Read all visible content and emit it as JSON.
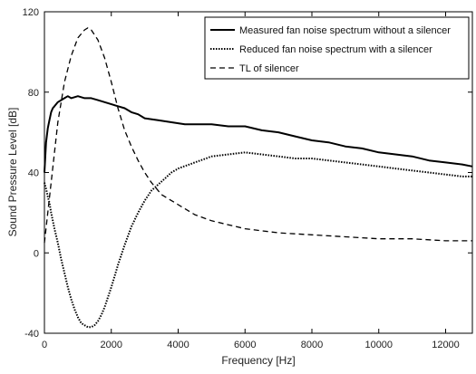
{
  "chart_data": {
    "type": "line",
    "xlabel": "Frequency [Hz]",
    "ylabel": "Sound Pressure Level [dB]",
    "xlim": [
      0,
      12800
    ],
    "ylim": [
      -40,
      120
    ],
    "xticks": [
      0,
      2000,
      4000,
      6000,
      8000,
      10000,
      12000
    ],
    "yticks": [
      -40,
      0,
      40,
      80,
      120
    ],
    "grid": false,
    "legend_position": "top-right",
    "series": [
      {
        "name": "Measured fan noise spectrum without a silencer",
        "style": "solid",
        "x": [
          0,
          50,
          100,
          150,
          200,
          250,
          300,
          400,
          500,
          600,
          700,
          800,
          1000,
          1200,
          1400,
          1600,
          1800,
          2000,
          2200,
          2400,
          2600,
          2800,
          3000,
          3400,
          3800,
          4200,
          4600,
          5000,
          5500,
          6000,
          6500,
          7000,
          7500,
          8000,
          8500,
          9000,
          9500,
          10000,
          10500,
          11000,
          11500,
          12000,
          12500,
          12800
        ],
        "y": [
          40,
          55,
          62,
          66,
          70,
          72,
          73,
          75,
          76,
          77,
          78,
          77,
          78,
          77,
          77,
          76,
          75,
          74,
          73,
          72,
          70,
          69,
          67,
          66,
          65,
          64,
          64,
          64,
          63,
          63,
          61,
          60,
          58,
          56,
          55,
          53,
          52,
          50,
          49,
          48,
          46,
          45,
          44,
          43
        ]
      },
      {
        "name": "Reduced fan noise spectrum with a silencer",
        "style": "dotted",
        "x": [
          0,
          50,
          100,
          150,
          200,
          300,
          400,
          500,
          600,
          700,
          800,
          900,
          1000,
          1100,
          1200,
          1300,
          1400,
          1500,
          1600,
          1700,
          1800,
          2000,
          2200,
          2400,
          2600,
          2800,
          3000,
          3200,
          3400,
          3600,
          3800,
          4000,
          4500,
          5000,
          5500,
          6000,
          6500,
          7000,
          7500,
          8000,
          8500,
          9000,
          9500,
          10000,
          10500,
          11000,
          11500,
          12000,
          12500,
          12800
        ],
        "y": [
          35,
          32,
          28,
          25,
          20,
          12,
          5,
          -3,
          -10,
          -17,
          -23,
          -28,
          -32,
          -35,
          -36,
          -37,
          -37,
          -36,
          -34,
          -31,
          -27,
          -17,
          -6,
          4,
          13,
          20,
          26,
          31,
          34,
          37,
          40,
          42,
          45,
          48,
          49,
          50,
          49,
          48,
          47,
          47,
          46,
          45,
          44,
          43,
          42,
          41,
          40,
          39,
          38,
          38
        ]
      },
      {
        "name": "TL of silencer",
        "style": "dashed",
        "x": [
          0,
          200,
          400,
          600,
          800,
          1000,
          1200,
          1300,
          1400,
          1600,
          1800,
          2000,
          2200,
          2400,
          2600,
          2800,
          3000,
          3200,
          3500,
          4000,
          4500,
          5000,
          5500,
          6000,
          7000,
          8000,
          9000,
          10000,
          11000,
          12000,
          12800
        ],
        "y": [
          5,
          35,
          65,
          85,
          98,
          107,
          111,
          112,
          111,
          106,
          97,
          85,
          72,
          61,
          53,
          46,
          40,
          35,
          29,
          24,
          19,
          16,
          14,
          12,
          10,
          9,
          8,
          7,
          7,
          6,
          6
        ]
      }
    ]
  }
}
